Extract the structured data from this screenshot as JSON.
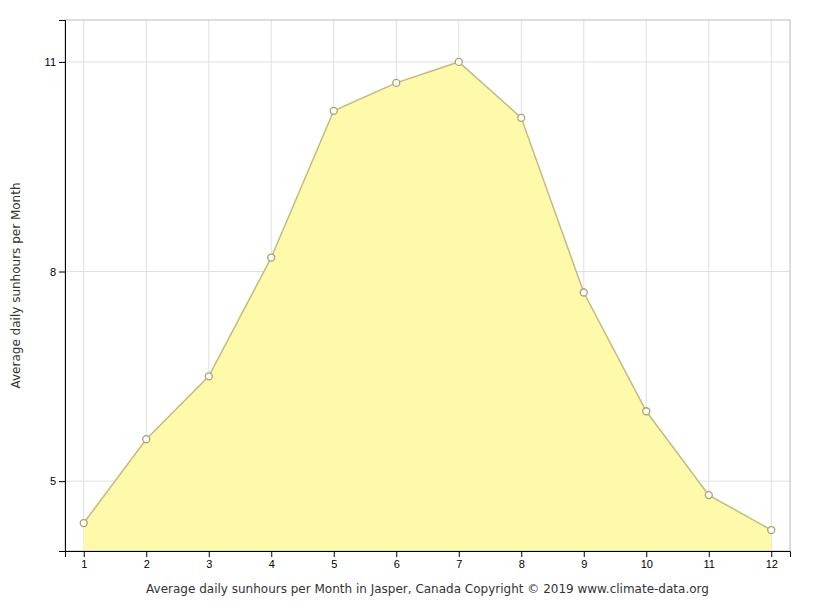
{
  "chart_data": {
    "type": "area",
    "x": [
      1,
      2,
      3,
      4,
      5,
      6,
      7,
      8,
      9,
      10,
      11,
      12
    ],
    "values": [
      4.4,
      5.6,
      6.5,
      8.2,
      10.3,
      10.7,
      11.0,
      10.2,
      7.7,
      6.0,
      4.8,
      4.3
    ],
    "color": "#FFFAAA",
    "marker": "circle",
    "xlabel": "Average daily sunhours per Month in Jasper, Canada Copyright © 2019 www.climate-data.org",
    "ylabel": "Average daily sunhours per Month",
    "xlim": [
      0.7,
      12.3
    ],
    "ylim": [
      4.0,
      11.6
    ],
    "xticks": [
      1,
      2,
      3,
      4,
      5,
      6,
      7,
      8,
      9,
      10,
      11,
      12
    ],
    "yticks": [
      5,
      8,
      11
    ],
    "grid": true
  }
}
